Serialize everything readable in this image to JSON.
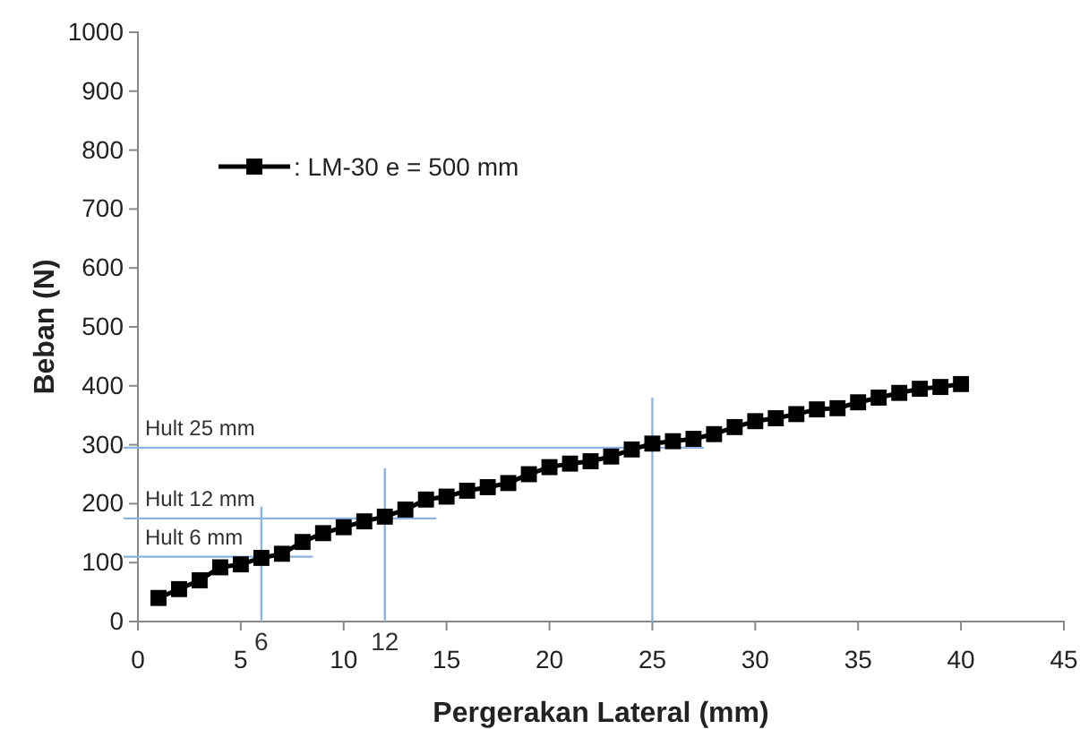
{
  "chart_data": {
    "type": "line",
    "xlabel": "Pergerakan Lateral (mm)",
    "ylabel": "Beban (N)",
    "x": [
      1,
      2,
      3,
      4,
      5,
      6,
      7,
      8,
      9,
      10,
      11,
      12,
      13,
      14,
      15,
      16,
      17,
      18,
      19,
      20,
      21,
      22,
      23,
      24,
      25,
      26,
      27,
      28,
      29,
      30,
      31,
      32,
      33,
      34,
      35,
      36,
      37,
      38,
      39,
      40
    ],
    "series": [
      {
        "name": ": LM-30 e = 500 mm",
        "color": "#000000",
        "values": [
          40,
          55,
          70,
          92,
          97,
          108,
          115,
          135,
          150,
          160,
          170,
          178,
          190,
          207,
          212,
          222,
          228,
          235,
          250,
          262,
          268,
          272,
          280,
          292,
          302,
          306,
          310,
          318,
          330,
          340,
          345,
          352,
          360,
          362,
          372,
          380,
          388,
          395,
          398,
          403
        ]
      }
    ],
    "xlim": [
      0,
      45
    ],
    "xticks": [
      0,
      5,
      10,
      15,
      20,
      25,
      30,
      35,
      40,
      45
    ],
    "ylim": [
      0,
      1000
    ],
    "yticks": [
      0,
      100,
      200,
      300,
      400,
      500,
      600,
      700,
      800,
      900,
      1000
    ],
    "grid": false,
    "legend": "top left",
    "marker": "square",
    "line_style": "solid",
    "ref_lines": [
      {
        "axis": "x",
        "value": 6,
        "label": "6",
        "color": "#8db3e2"
      },
      {
        "axis": "x",
        "value": 12,
        "label": "12",
        "color": "#8db3e2"
      },
      {
        "axis": "x",
        "value": 25,
        "label": null,
        "color": "#8db3e2"
      },
      {
        "axis": "y",
        "value": 110,
        "label": "Hult 6 mm",
        "color": "#8db3e2"
      },
      {
        "axis": "y",
        "value": 175,
        "label": "Hult 12 mm",
        "color": "#8db3e2"
      },
      {
        "axis": "y",
        "value": 295,
        "label": "Hult 25 mm",
        "color": "#8db3e2"
      }
    ]
  }
}
